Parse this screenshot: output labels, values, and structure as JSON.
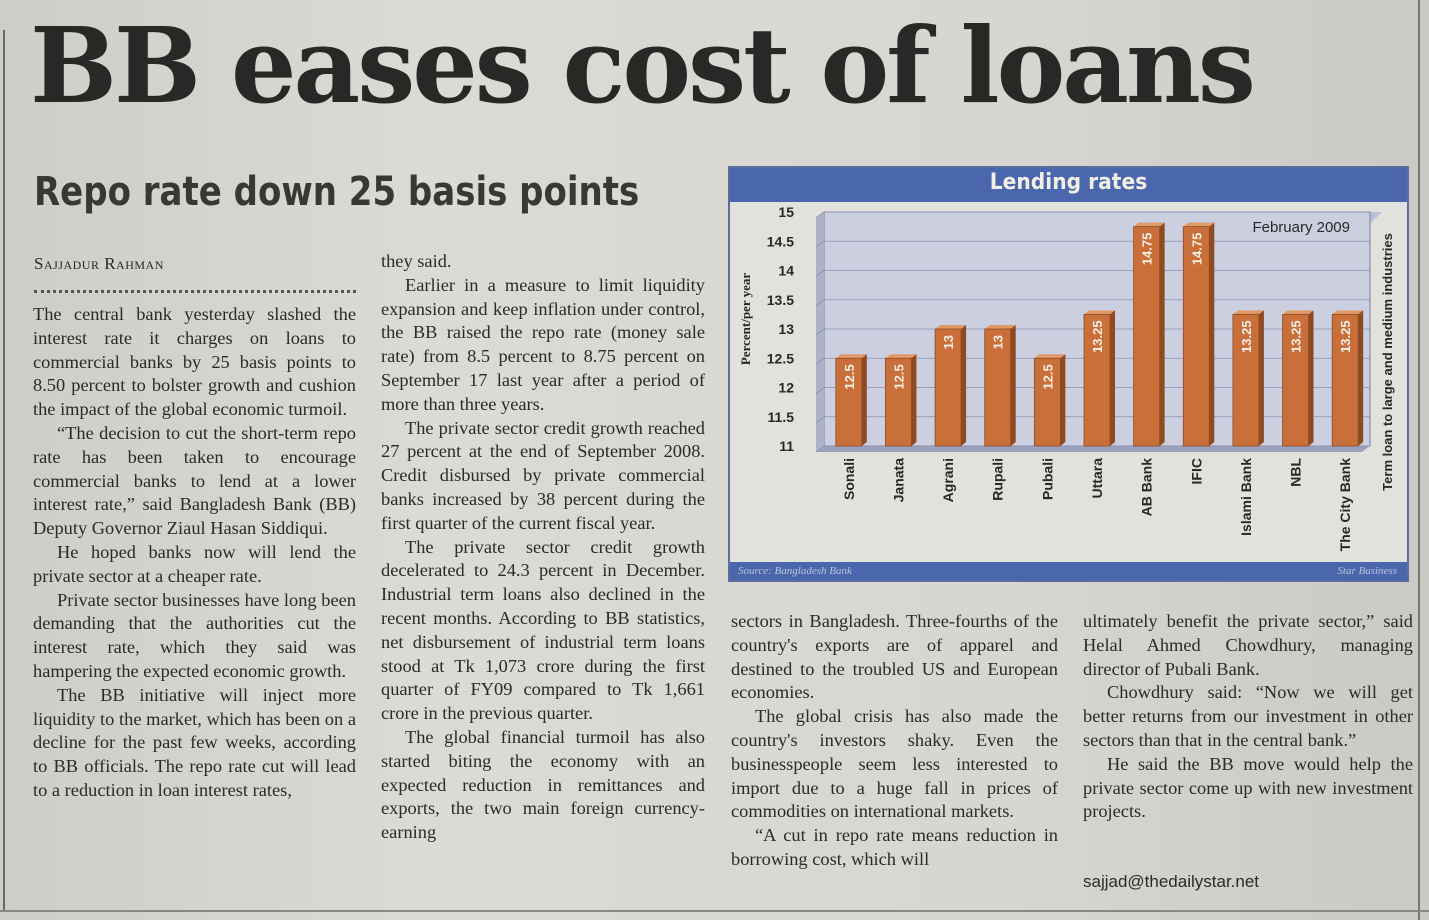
{
  "article": {
    "headline": "BB eases cost of loans",
    "subheadline": "Repo rate down 25 basis points",
    "byline": "Sajjadur Rahman",
    "email": "sajjad@thedailystar.net",
    "columns": [
      [
        {
          "indent": false,
          "text": "The central bank yesterday slashed the interest rate it charges on loans to commercial banks by 25 basis points to 8.50 percent to bolster growth and cushion the impact of the global economic turmoil."
        },
        {
          "indent": true,
          "text": "“The decision to cut the short-term repo rate has been taken to encourage commercial banks to lend at a lower interest rate,” said Bangladesh Bank (BB) Deputy Governor Ziaul Hasan Siddiqui."
        },
        {
          "indent": true,
          "text": "He hoped banks now will lend the private sector at a cheaper rate."
        },
        {
          "indent": true,
          "text": "Private sector businesses have long been demanding that the authorities cut the interest rate, which they said was hampering the expected economic growth."
        },
        {
          "indent": true,
          "text": "The BB initiative will inject more liquidity to the market, which has been on a decline for the past few weeks, according to BB officials. The repo rate cut will lead to a reduction in loan interest rates,"
        }
      ],
      [
        {
          "indent": false,
          "text": "they said."
        },
        {
          "indent": true,
          "text": "Earlier in a measure to limit liquidity expansion and keep inflation under control, the BB raised the repo rate (money sale rate) from 8.5 percent to 8.75 percent on September 17 last year after a period of more than three years."
        },
        {
          "indent": true,
          "text": "The private sector credit growth reached 27 percent at the end of September 2008. Credit disbursed by private commercial banks increased by 38 percent during the first quarter of the current fiscal year."
        },
        {
          "indent": true,
          "text": "The private sector credit growth decelerated to 24.3 percent in December. Industrial term loans also declined in the recent months. According to BB statistics, net disbursement of industrial term loans stood at Tk 1,073 crore during the first quarter of FY09 compared to Tk 1,661 crore in the previous quarter."
        },
        {
          "indent": true,
          "text": "The global financial turmoil has also started biting the economy with an expected reduction in remittances and exports, the two main foreign currency-earning"
        }
      ],
      [
        {
          "indent": false,
          "text": "sectors in Bangladesh. Three-fourths of the country's exports are of apparel and destined to the troubled US and European economies."
        },
        {
          "indent": true,
          "text": "The global crisis has also made the country's investors shaky. Even the businesspeople seem less interested to import due to a huge fall in prices of commodities on international markets."
        },
        {
          "indent": true,
          "text": "“A cut in repo rate means reduction in borrowing cost, which will"
        }
      ],
      [
        {
          "indent": false,
          "text": "ultimately benefit the private sector,” said Helal Ahmed Chowdhury, managing director of Pubali Bank."
        },
        {
          "indent": true,
          "text": "Chowdhury said: “Now we will get better returns from our investment in other sectors than that in the central bank.”"
        },
        {
          "indent": true,
          "text": "He said the BB move would help the private sector come up with new investment projects."
        }
      ]
    ]
  },
  "chart_data": {
    "type": "bar",
    "title": "Lending rates",
    "subtitle": "February 2009",
    "ylabel": "Percent/per year",
    "right_label": "Term loan to large and medium industries",
    "source": "Source: Bangladesh Bank",
    "credit": "Star Business",
    "categories": [
      "Sonali",
      "Janata",
      "Agrani",
      "Rupali",
      "Pubali",
      "Uttara",
      "AB Bank",
      "IFIC",
      "Islami Bank",
      "NBL",
      "The City Bank"
    ],
    "values": [
      12.5,
      12.5,
      13,
      13,
      12.5,
      13.25,
      14.75,
      14.75,
      13.25,
      13.25,
      13.25
    ],
    "value_labels": [
      "12.5",
      "12.5",
      "13",
      "13",
      "12.5",
      "13.25",
      "14.75",
      "14.75",
      "13.25",
      "13.25",
      "13.25"
    ],
    "yticks": [
      "15",
      "14.5",
      "14",
      "13.5",
      "13",
      "12.5",
      "12",
      "11.5",
      "11"
    ],
    "ylim": [
      11,
      15
    ],
    "grid": true,
    "colors": {
      "bar": "#c9703a",
      "bar_edge": "#8f4a22",
      "header": "#4a66ad",
      "plot_bg": "#cbcfe0",
      "grid": "#8a90b0"
    }
  }
}
